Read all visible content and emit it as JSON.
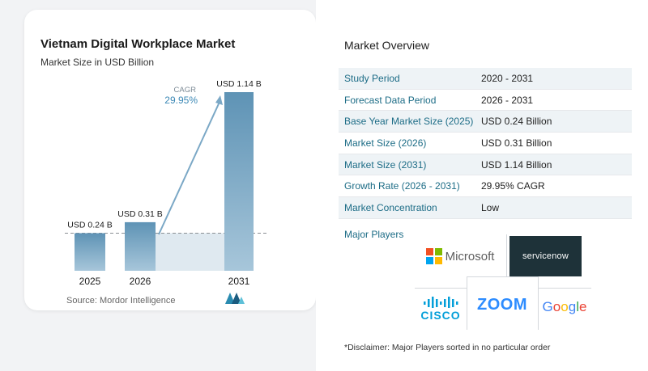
{
  "chart_data": {
    "type": "bar",
    "title": "Vietnam Digital Workplace Market",
    "subtitle": "Market Size in USD Billion",
    "categories": [
      "2025",
      "2026",
      "2031"
    ],
    "values": [
      0.24,
      0.31,
      1.14
    ],
    "value_labels": [
      "USD 0.24 B",
      "USD 0.31 B",
      "USD 1.14 B"
    ],
    "ylim": [
      0,
      1.14
    ],
    "grid": false,
    "annotation": {
      "label": "CAGR",
      "value": "29.95%"
    },
    "colors": {
      "bar": "#5e93b5",
      "bar_light": "#a7c6da",
      "band": "#dfe9f0",
      "arrow": "#7ba8c6"
    }
  },
  "source": "Source: Mordor Intelligence",
  "overview": {
    "title": "Market Overview",
    "rows": [
      {
        "label": "Study Period",
        "value": "2020 - 2031"
      },
      {
        "label": "Forecast Data Period",
        "value": "2026 - 2031"
      },
      {
        "label": "Base Year Market Size (2025)",
        "value": "USD 0.24 Billion"
      },
      {
        "label": "Market Size (2026)",
        "value": "USD 0.31 Billion"
      },
      {
        "label": "Market Size (2031)",
        "value": "USD 1.14 Billion"
      },
      {
        "label": "Growth Rate (2026 - 2031)",
        "value": "29.95% CAGR"
      },
      {
        "label": "Market Concentration",
        "value": "Low"
      }
    ],
    "players_label": "Major Players",
    "players": [
      "Microsoft",
      "servicenow",
      "CISCO",
      "ZOOM",
      "Google"
    ],
    "disclaimer": "*Disclaimer: Major Players sorted in no particular order"
  }
}
